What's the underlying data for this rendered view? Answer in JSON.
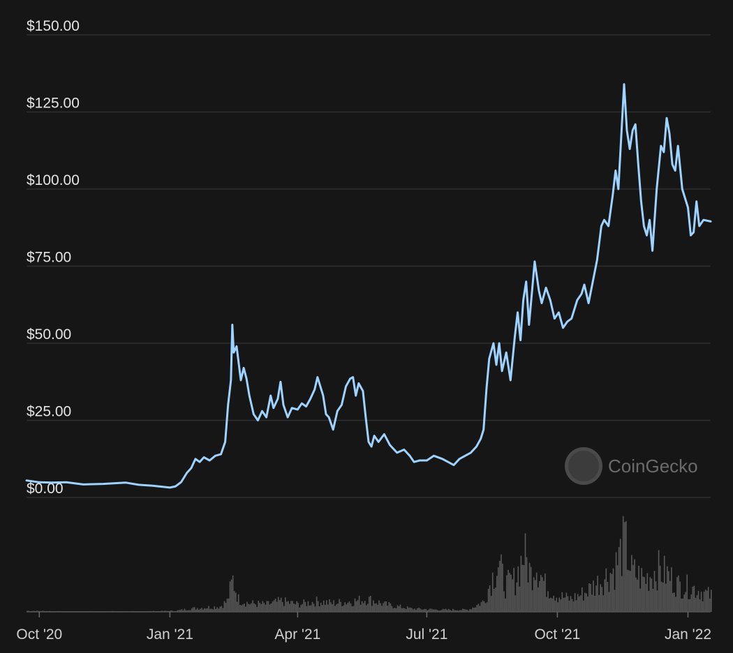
{
  "chart_data": {
    "type": "line",
    "title": "",
    "watermark": "CoinGecko",
    "line_color": "#9fd3ff",
    "volume_color": "#5a5a5a",
    "grid": true,
    "ylim": [
      0,
      150
    ],
    "y_ticks": [
      0,
      25,
      50,
      75,
      100,
      125,
      150
    ],
    "y_tick_labels": [
      "$0.00",
      "$25.00",
      "$50.00",
      "$75.00",
      "$100.00",
      "$125.00",
      "$150.00"
    ],
    "x_ticks": [
      {
        "date": "2020-10-01",
        "label": "Oct '20"
      },
      {
        "date": "2021-01-01",
        "label": "Jan '21"
      },
      {
        "date": "2021-04-01",
        "label": "Apr '21"
      },
      {
        "date": "2021-07-01",
        "label": "Jul '21"
      },
      {
        "date": "2021-10-01",
        "label": "Oct '21"
      },
      {
        "date": "2022-01-01",
        "label": "Jan '22"
      }
    ],
    "xlim": [
      "2020-09-22",
      "2022-01-17"
    ],
    "series": [
      {
        "kind": "price",
        "points": [
          [
            "2020-09-22",
            5.5
          ],
          [
            "2020-10-01",
            4.9
          ],
          [
            "2020-10-10",
            4.8
          ],
          [
            "2020-10-20",
            4.9
          ],
          [
            "2020-11-01",
            4.2
          ],
          [
            "2020-11-15",
            4.4
          ],
          [
            "2020-12-01",
            4.8
          ],
          [
            "2020-12-10",
            4.1
          ],
          [
            "2020-12-20",
            3.8
          ],
          [
            "2021-01-01",
            3.2
          ],
          [
            "2021-01-05",
            3.6
          ],
          [
            "2021-01-09",
            5.0
          ],
          [
            "2021-01-13",
            8.0
          ],
          [
            "2021-01-16",
            9.5
          ],
          [
            "2021-01-19",
            12.5
          ],
          [
            "2021-01-22",
            11.5
          ],
          [
            "2021-01-25",
            13.0
          ],
          [
            "2021-01-29",
            12.0
          ],
          [
            "2021-02-02",
            13.5
          ],
          [
            "2021-02-06",
            14.0
          ],
          [
            "2021-02-09",
            18.0
          ],
          [
            "2021-02-11",
            30.0
          ],
          [
            "2021-02-13",
            38.0
          ],
          [
            "2021-02-14",
            56.0
          ],
          [
            "2021-02-15",
            47.0
          ],
          [
            "2021-02-17",
            49.0
          ],
          [
            "2021-02-20",
            38.0
          ],
          [
            "2021-02-22",
            42.0
          ],
          [
            "2021-02-24",
            38.5
          ],
          [
            "2021-02-26",
            33.0
          ],
          [
            "2021-03-01",
            27.0
          ],
          [
            "2021-03-04",
            25.0
          ],
          [
            "2021-03-07",
            28.0
          ],
          [
            "2021-03-10",
            26.0
          ],
          [
            "2021-03-13",
            33.0
          ],
          [
            "2021-03-15",
            29.0
          ],
          [
            "2021-03-18",
            32.0
          ],
          [
            "2021-03-20",
            37.5
          ],
          [
            "2021-03-22",
            30.0
          ],
          [
            "2021-03-25",
            26.0
          ],
          [
            "2021-03-28",
            29.0
          ],
          [
            "2021-04-01",
            28.5
          ],
          [
            "2021-04-04",
            30.5
          ],
          [
            "2021-04-07",
            29.5
          ],
          [
            "2021-04-10",
            32.0
          ],
          [
            "2021-04-13",
            35.0
          ],
          [
            "2021-04-15",
            39.0
          ],
          [
            "2021-04-17",
            36.0
          ],
          [
            "2021-04-19",
            33.0
          ],
          [
            "2021-04-21",
            27.0
          ],
          [
            "2021-04-23",
            26.0
          ],
          [
            "2021-04-26",
            22.0
          ],
          [
            "2021-04-29",
            28.0
          ],
          [
            "2021-05-02",
            30.0
          ],
          [
            "2021-05-05",
            36.0
          ],
          [
            "2021-05-08",
            38.5
          ],
          [
            "2021-05-10",
            39.0
          ],
          [
            "2021-05-12",
            33.0
          ],
          [
            "2021-05-14",
            37.0
          ],
          [
            "2021-05-17",
            34.5
          ],
          [
            "2021-05-19",
            26.0
          ],
          [
            "2021-05-21",
            18.0
          ],
          [
            "2021-05-23",
            16.5
          ],
          [
            "2021-05-25",
            20.0
          ],
          [
            "2021-05-28",
            18.0
          ],
          [
            "2021-06-01",
            20.5
          ],
          [
            "2021-06-05",
            17.0
          ],
          [
            "2021-06-10",
            14.5
          ],
          [
            "2021-06-15",
            15.5
          ],
          [
            "2021-06-19",
            13.5
          ],
          [
            "2021-06-22",
            11.5
          ],
          [
            "2021-06-26",
            12.0
          ],
          [
            "2021-07-01",
            12.0
          ],
          [
            "2021-07-06",
            13.5
          ],
          [
            "2021-07-12",
            12.5
          ],
          [
            "2021-07-16",
            11.5
          ],
          [
            "2021-07-20",
            10.5
          ],
          [
            "2021-07-24",
            12.5
          ],
          [
            "2021-07-28",
            13.5
          ],
          [
            "2021-08-01",
            14.5
          ],
          [
            "2021-08-05",
            16.5
          ],
          [
            "2021-08-08",
            19.0
          ],
          [
            "2021-08-10",
            22.0
          ],
          [
            "2021-08-12",
            35.0
          ],
          [
            "2021-08-14",
            45.0
          ],
          [
            "2021-08-17",
            50.0
          ],
          [
            "2021-08-19",
            43.0
          ],
          [
            "2021-08-21",
            50.0
          ],
          [
            "2021-08-23",
            41.0
          ],
          [
            "2021-08-26",
            47.0
          ],
          [
            "2021-08-29",
            38.0
          ],
          [
            "2021-09-01",
            52.0
          ],
          [
            "2021-09-03",
            60.0
          ],
          [
            "2021-09-05",
            51.0
          ],
          [
            "2021-09-07",
            64.0
          ],
          [
            "2021-09-09",
            70.0
          ],
          [
            "2021-09-11",
            56.0
          ],
          [
            "2021-09-13",
            66.0
          ],
          [
            "2021-09-15",
            76.5
          ],
          [
            "2021-09-18",
            67.0
          ],
          [
            "2021-09-20",
            63.0
          ],
          [
            "2021-09-23",
            68.0
          ],
          [
            "2021-09-26",
            64.0
          ],
          [
            "2021-09-29",
            58.0
          ],
          [
            "2021-10-02",
            60.0
          ],
          [
            "2021-10-05",
            55.0
          ],
          [
            "2021-10-08",
            57.0
          ],
          [
            "2021-10-11",
            58.0
          ],
          [
            "2021-10-15",
            64.0
          ],
          [
            "2021-10-18",
            66.0
          ],
          [
            "2021-10-20",
            69.0
          ],
          [
            "2021-10-23",
            63.0
          ],
          [
            "2021-10-26",
            70.0
          ],
          [
            "2021-10-29",
            77.0
          ],
          [
            "2021-11-01",
            88.0
          ],
          [
            "2021-11-03",
            90.0
          ],
          [
            "2021-11-06",
            88.0
          ],
          [
            "2021-11-09",
            98.0
          ],
          [
            "2021-11-11",
            106.0
          ],
          [
            "2021-11-13",
            100.0
          ],
          [
            "2021-11-15",
            117.0
          ],
          [
            "2021-11-17",
            134.0
          ],
          [
            "2021-11-19",
            119.0
          ],
          [
            "2021-11-21",
            113.0
          ],
          [
            "2021-11-23",
            119.0
          ],
          [
            "2021-11-25",
            121.0
          ],
          [
            "2021-11-27",
            108.0
          ],
          [
            "2021-11-29",
            96.0
          ],
          [
            "2021-12-01",
            88.0
          ],
          [
            "2021-12-03",
            85.0
          ],
          [
            "2021-12-05",
            90.0
          ],
          [
            "2021-12-07",
            80.0
          ],
          [
            "2021-12-10",
            100.0
          ],
          [
            "2021-12-13",
            114.0
          ],
          [
            "2021-12-15",
            112.0
          ],
          [
            "2021-12-17",
            123.0
          ],
          [
            "2021-12-19",
            118.0
          ],
          [
            "2021-12-21",
            108.0
          ],
          [
            "2021-12-23",
            106.0
          ],
          [
            "2021-12-25",
            114.0
          ],
          [
            "2021-12-28",
            100.0
          ],
          [
            "2022-01-01",
            94.0
          ],
          [
            "2022-01-03",
            85.0
          ],
          [
            "2022-01-05",
            86.0
          ],
          [
            "2022-01-07",
            96.0
          ],
          [
            "2022-01-09",
            88.0
          ],
          [
            "2022-01-12",
            90.0
          ],
          [
            "2022-01-17",
            89.5
          ]
        ]
      },
      {
        "kind": "volume",
        "note_units": "relative volume, no axis shown",
        "points": [
          [
            "2020-09-22",
            1
          ],
          [
            "2020-10-15",
            0.5
          ],
          [
            "2020-11-15",
            0.5
          ],
          [
            "2020-12-15",
            0.5
          ],
          [
            "2021-01-05",
            1
          ],
          [
            "2021-01-15",
            3
          ],
          [
            "2021-01-25",
            4
          ],
          [
            "2021-02-05",
            5
          ],
          [
            "2021-02-10",
            10
          ],
          [
            "2021-02-14",
            30
          ],
          [
            "2021-02-18",
            12
          ],
          [
            "2021-02-25",
            8
          ],
          [
            "2021-03-10",
            7
          ],
          [
            "2021-03-20",
            10
          ],
          [
            "2021-04-01",
            7
          ],
          [
            "2021-04-15",
            10
          ],
          [
            "2021-04-25",
            8
          ],
          [
            "2021-05-10",
            10
          ],
          [
            "2021-05-20",
            12
          ],
          [
            "2021-06-01",
            7
          ],
          [
            "2021-06-20",
            3
          ],
          [
            "2021-07-10",
            2
          ],
          [
            "2021-07-30",
            2
          ],
          [
            "2021-08-10",
            10
          ],
          [
            "2021-08-15",
            30
          ],
          [
            "2021-08-20",
            45
          ],
          [
            "2021-08-25",
            25
          ],
          [
            "2021-09-01",
            30
          ],
          [
            "2021-09-07",
            55
          ],
          [
            "2021-09-12",
            35
          ],
          [
            "2021-09-15",
            48
          ],
          [
            "2021-09-22",
            25
          ],
          [
            "2021-10-01",
            15
          ],
          [
            "2021-10-10",
            12
          ],
          [
            "2021-10-20",
            18
          ],
          [
            "2021-11-01",
            30
          ],
          [
            "2021-11-10",
            40
          ],
          [
            "2021-11-17",
            65
          ],
          [
            "2021-11-22",
            38
          ],
          [
            "2021-12-01",
            30
          ],
          [
            "2021-12-10",
            40
          ],
          [
            "2021-12-17",
            35
          ],
          [
            "2021-12-25",
            25
          ],
          [
            "2022-01-05",
            22
          ],
          [
            "2022-01-17",
            15
          ]
        ]
      }
    ]
  }
}
